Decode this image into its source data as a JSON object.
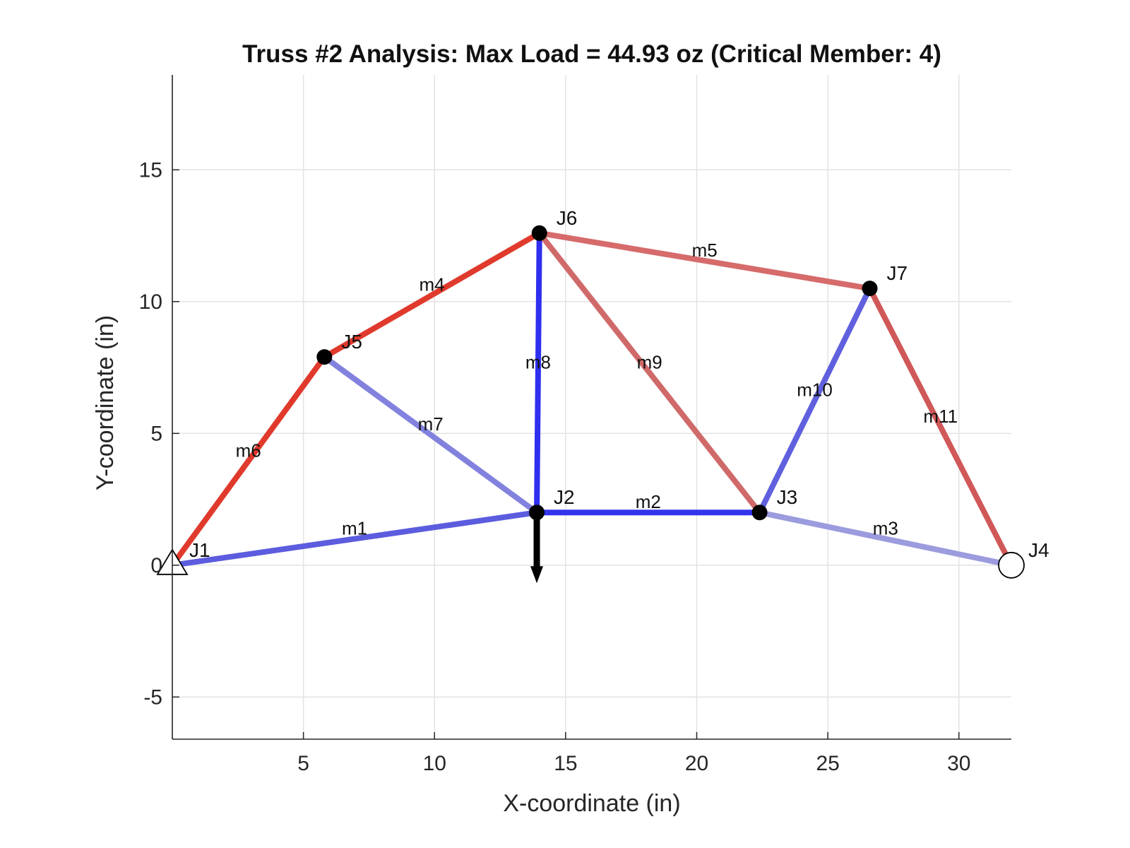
{
  "chart_data": {
    "type": "truss-diagram",
    "title": "Truss #2 Analysis: Max Load = 44.93 oz (Critical Member: 4)",
    "xlabel": "X-coordinate (in)",
    "ylabel": "Y-coordinate (in)",
    "xlim": [
      0,
      32
    ],
    "ylim": [
      -6.6,
      18.6
    ],
    "xticks": [
      5,
      10,
      15,
      20,
      25,
      30
    ],
    "yticks": [
      -5,
      0,
      5,
      10,
      15
    ],
    "grid": true,
    "joints": [
      {
        "name": "J1",
        "x": 0,
        "y": 0,
        "support": "pin"
      },
      {
        "name": "J2",
        "x": 13.9,
        "y": 2.0
      },
      {
        "name": "J3",
        "x": 22.4,
        "y": 2.0
      },
      {
        "name": "J4",
        "x": 32.0,
        "y": 0,
        "support": "roller"
      },
      {
        "name": "J5",
        "x": 5.8,
        "y": 7.9
      },
      {
        "name": "J6",
        "x": 14.0,
        "y": 12.6
      },
      {
        "name": "J7",
        "x": 26.6,
        "y": 10.5
      }
    ],
    "members": [
      {
        "name": "m1",
        "from": "J1",
        "to": "J2",
        "color": "#5c5cdf"
      },
      {
        "name": "m2",
        "from": "J2",
        "to": "J3",
        "color": "#3333ee"
      },
      {
        "name": "m3",
        "from": "J3",
        "to": "J4",
        "color": "#9b9bde"
      },
      {
        "name": "m4",
        "from": "J5",
        "to": "J6",
        "color": "#e03a2c"
      },
      {
        "name": "m5",
        "from": "J6",
        "to": "J7",
        "color": "#d66b6b"
      },
      {
        "name": "m6",
        "from": "J1",
        "to": "J5",
        "color": "#e03a2c"
      },
      {
        "name": "m7",
        "from": "J5",
        "to": "J2",
        "color": "#8282de"
      },
      {
        "name": "m8",
        "from": "J2",
        "to": "J6",
        "color": "#2f2fef"
      },
      {
        "name": "m9",
        "from": "J6",
        "to": "J3",
        "color": "#d06a6a"
      },
      {
        "name": "m10",
        "from": "J3",
        "to": "J7",
        "color": "#6060df"
      },
      {
        "name": "m11",
        "from": "J7",
        "to": "J4",
        "color": "#d05858"
      }
    ],
    "load": {
      "joint": "J2",
      "direction": "down"
    }
  }
}
